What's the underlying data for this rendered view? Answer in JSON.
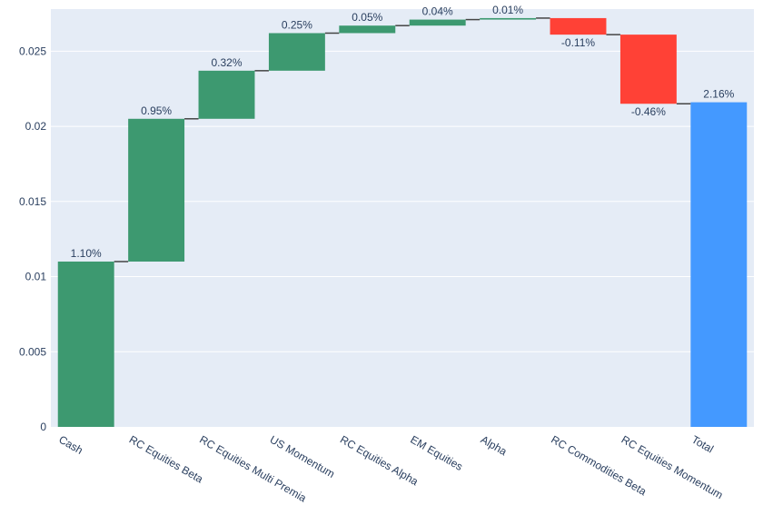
{
  "chart_data": {
    "type": "waterfall",
    "categories": [
      "Cash",
      "RC Equities Beta",
      "RC Equities Multi Premia",
      "US Momentum",
      "RC Equities Alpha",
      "EM Equities",
      "Alpha",
      "RC Commodities Beta",
      "RC Equities Momentum",
      "Total"
    ],
    "values": [
      0.011,
      0.0095,
      0.0032,
      0.0025,
      0.0005,
      0.0004,
      0.0001,
      -0.0011,
      -0.0046,
      0.0216
    ],
    "measures": [
      "relative",
      "relative",
      "relative",
      "relative",
      "relative",
      "relative",
      "relative",
      "relative",
      "relative",
      "total"
    ],
    "data_labels": [
      "1.10%",
      "0.95%",
      "0.32%",
      "0.25%",
      "0.05%",
      "0.04%",
      "0.01%",
      "-0.11%",
      "-0.46%",
      "2.16%"
    ],
    "ylim": [
      0,
      0.0278
    ],
    "y_ticks": [
      0,
      0.005,
      0.01,
      0.015,
      0.02,
      0.025
    ],
    "y_tick_labels": [
      "0",
      "0.005",
      "0.01",
      "0.015",
      "0.02",
      "0.025"
    ],
    "grid": true,
    "colors": {
      "increasing": "#3d9970",
      "decreasing": "#ff4136",
      "total": "#4499ff",
      "plot_background": "#e5ecf6",
      "gridline": "#ffffff",
      "connector": "#444444",
      "text": "#2a3f5f"
    }
  }
}
